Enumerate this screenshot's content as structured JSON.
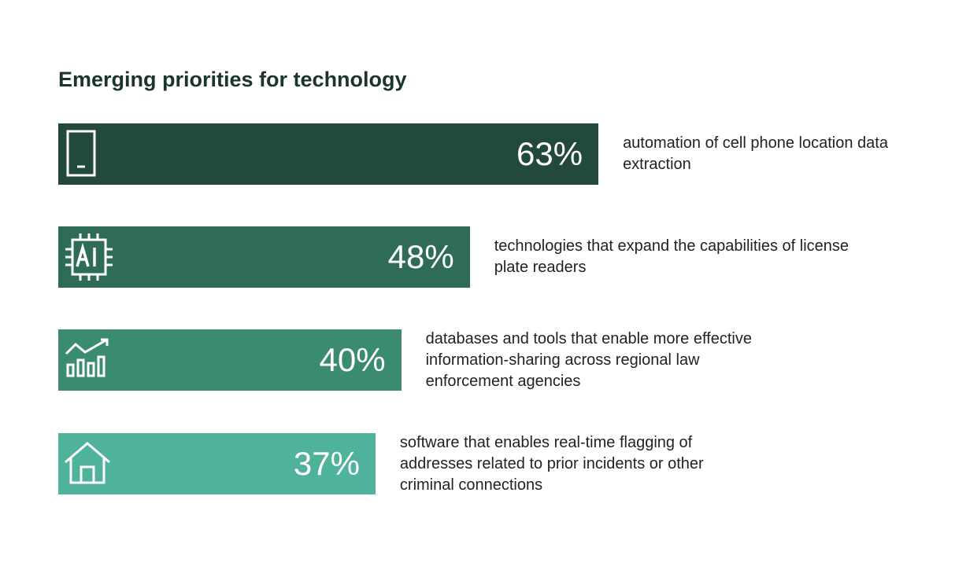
{
  "chart_data": {
    "type": "bar",
    "orientation": "horizontal",
    "title": "Emerging priorities for technology",
    "categories": [
      "automation of cell phone location data extraction",
      "technologies that expand the capabilities of license plate readers",
      "databases and tools that enable more effective information-sharing across regional law enforcement agencies",
      "software that enables real-time flagging of addresses related to prior incidents or other criminal connections"
    ],
    "values": [
      63,
      48,
      40,
      37
    ],
    "value_labels": [
      "63%",
      "48%",
      "40%",
      "37%"
    ],
    "colors": [
      "#22493c",
      "#2f6b59",
      "#3b8b72",
      "#4fb29a"
    ]
  }
}
